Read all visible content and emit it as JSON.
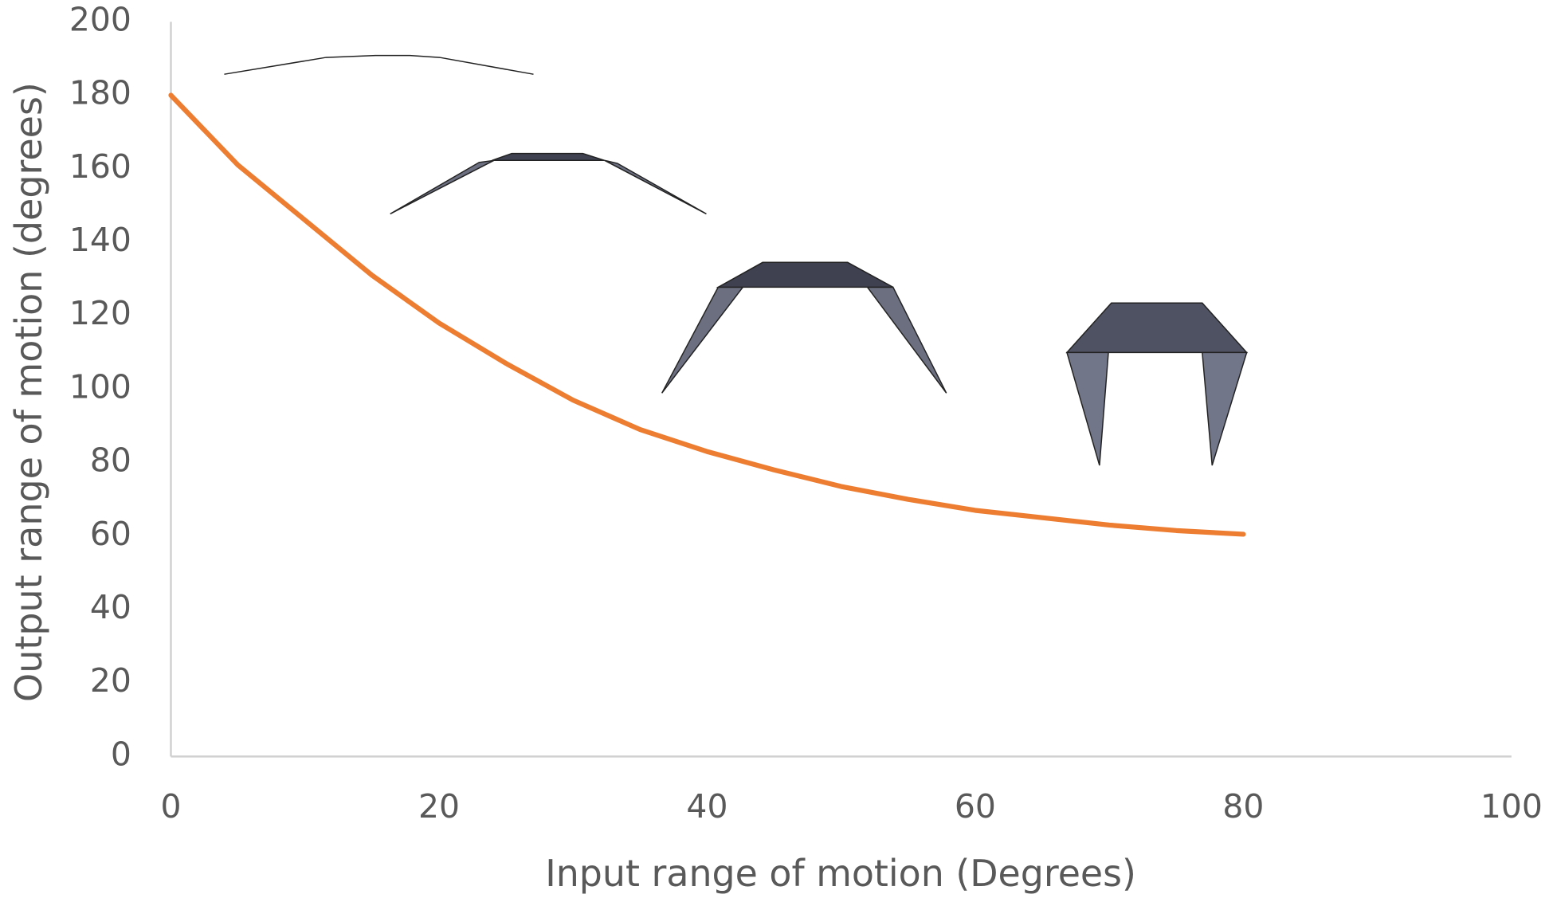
{
  "chart_data": {
    "type": "line",
    "x_label": "Input range of motion (Degrees)",
    "y_label": "Output range of motion (degrees)",
    "x": [
      0,
      5,
      10,
      15,
      20,
      25,
      30,
      35,
      40,
      45,
      50,
      55,
      60,
      65,
      70,
      75,
      80
    ],
    "values": [
      180,
      161,
      146,
      131,
      118,
      107,
      97,
      89,
      83,
      78,
      73.5,
      70,
      67,
      65,
      63,
      61.5,
      60.5
    ],
    "color": "#ed7d31",
    "xlim": [
      0,
      100
    ],
    "xticks": [
      0,
      20,
      40,
      60,
      80,
      100
    ],
    "ylim": [
      0,
      200
    ],
    "yticks": [
      0,
      20,
      40,
      60,
      80,
      100,
      120,
      140,
      160,
      180,
      200
    ],
    "grid": false
  }
}
